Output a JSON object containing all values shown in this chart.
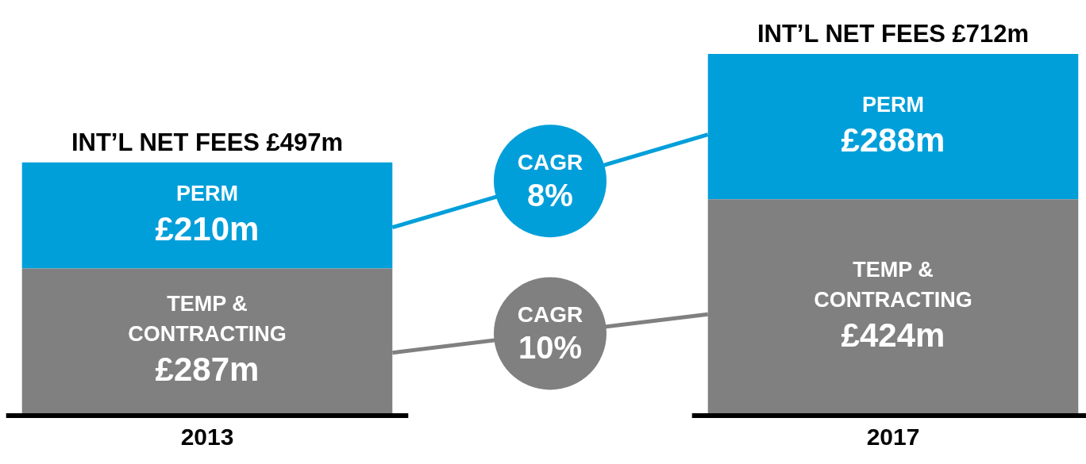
{
  "chart_data": {
    "type": "bar",
    "stacked": true,
    "categories": [
      "2013",
      "2017"
    ],
    "series": [
      {
        "name": "TEMP & CONTRACTING",
        "color": "#808080",
        "values": [
          287,
          424
        ],
        "value_labels": [
          "£287m",
          "£424m"
        ]
      },
      {
        "name": "PERM",
        "color": "#009fda",
        "values": [
          210,
          288
        ],
        "value_labels": [
          "£210m",
          "£288m"
        ]
      }
    ],
    "totals": [
      "INT’L NET FEES £497m",
      "INT’L NET FEES £712m"
    ],
    "annotations": [
      "CAGR 10%",
      "CAGR 8%"
    ],
    "legend": false,
    "grid": false
  }
}
